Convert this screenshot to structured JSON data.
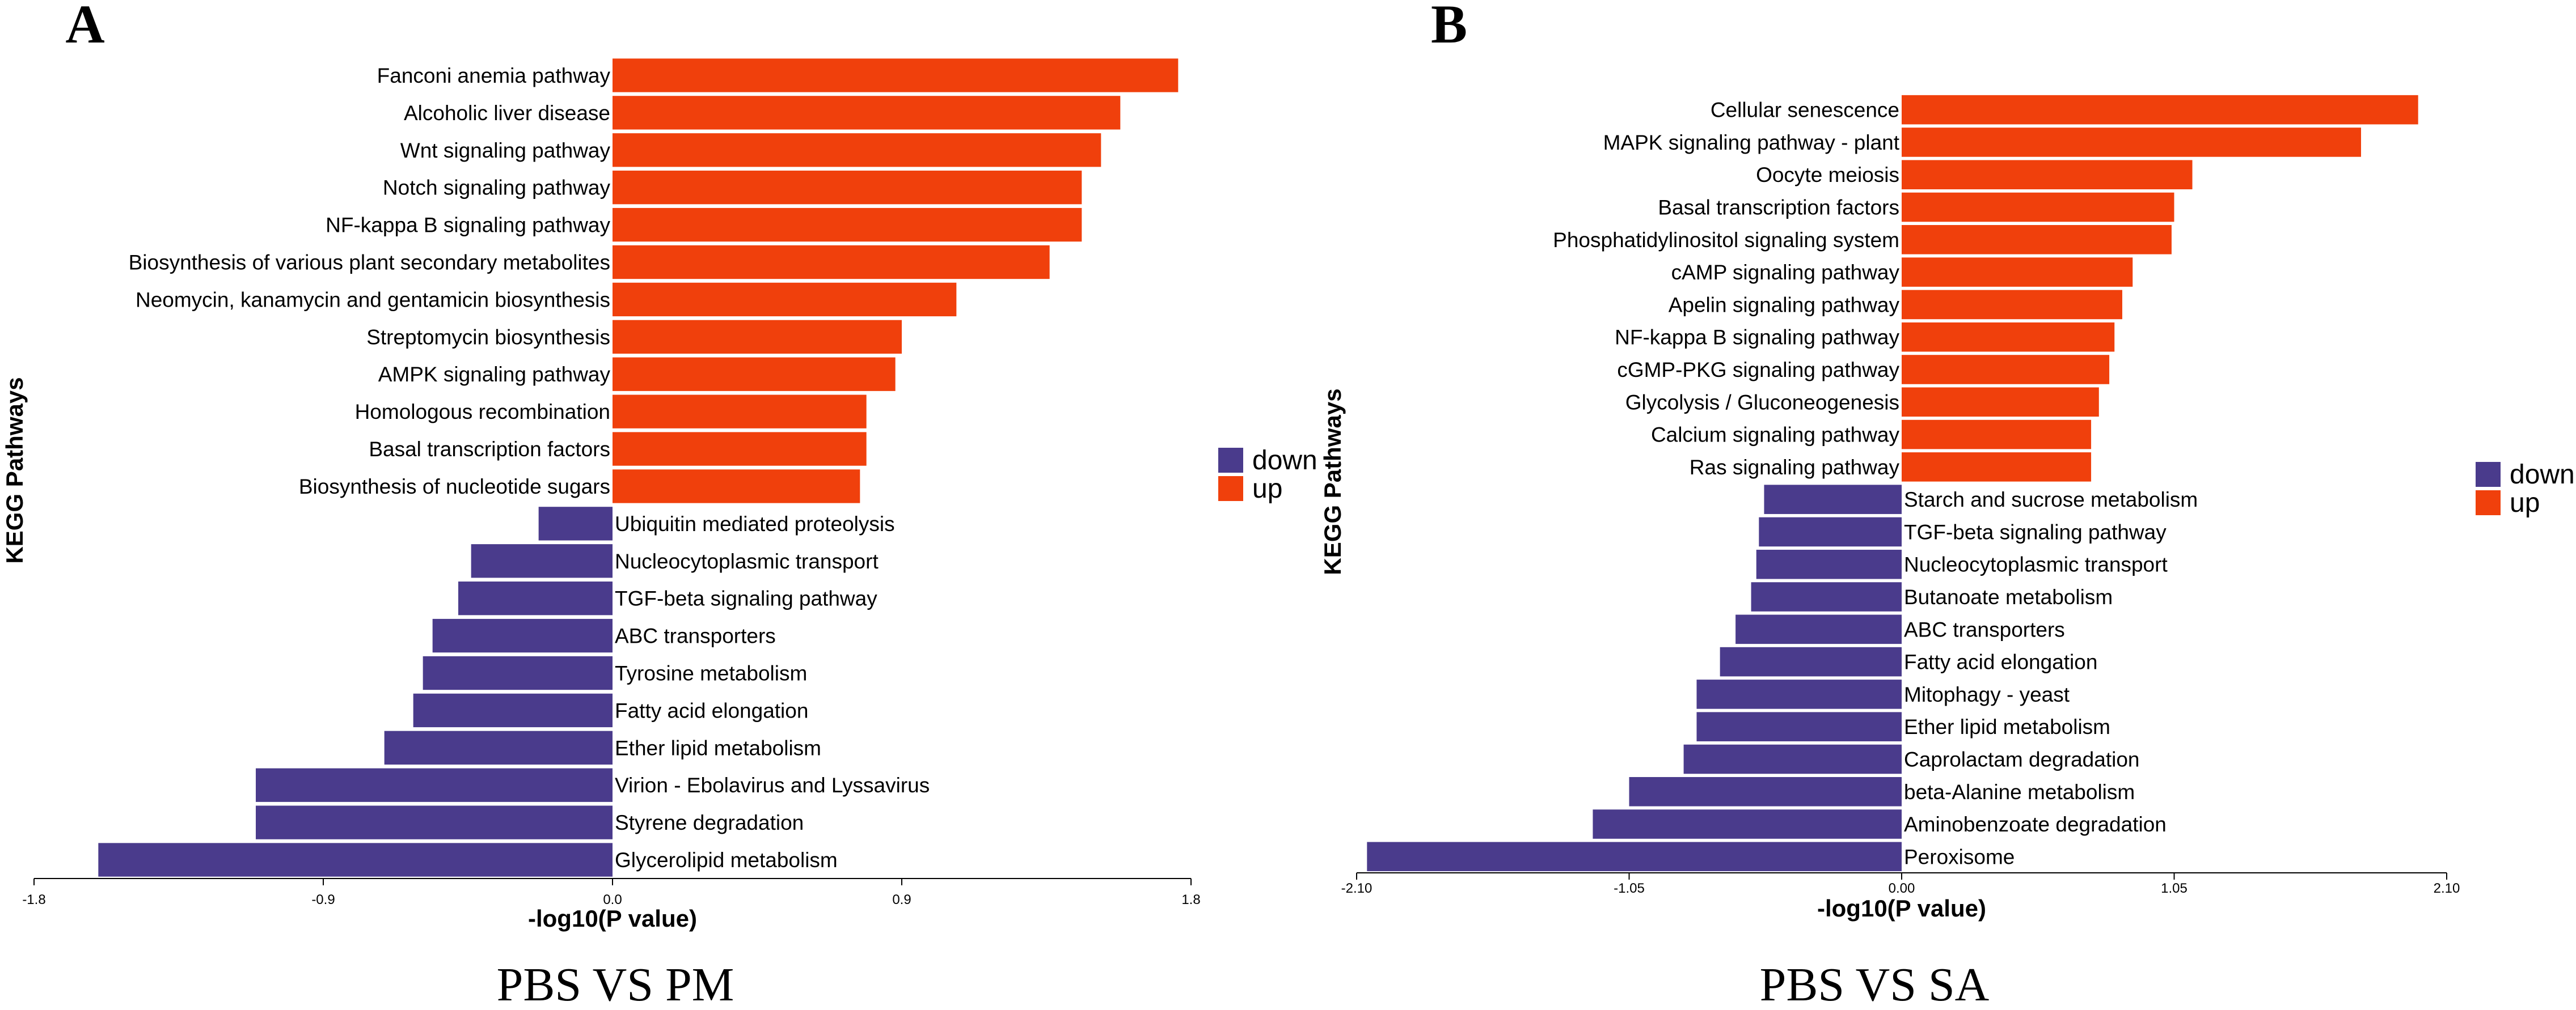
{
  "colors": {
    "up": "#F0400C",
    "down": "#4A3B8C"
  },
  "chart_data": [
    {
      "type": "bar",
      "orientation": "horizontal",
      "panel": "A",
      "caption": "PBS VS PM",
      "xlabel": "-log10(P value)",
      "ylabel": "KEGG Pathways",
      "xlim": [
        -1.8,
        1.8
      ],
      "xticks": [
        "-1.8",
        "-0.9",
        "0.0",
        "0.9",
        "1.8"
      ],
      "xtick_values": [
        -1.8,
        -0.9,
        0,
        0.9,
        1.8
      ],
      "legend": [
        "down",
        "up"
      ],
      "legend_position": "right",
      "categories": [
        "Fanconi anemia pathway",
        "Alcoholic liver disease",
        "Wnt signaling pathway",
        "Notch signaling pathway",
        "NF-kappa B signaling pathway",
        "Biosynthesis of various plant secondary metabolites",
        "Neomycin, kanamycin and gentamicin biosynthesis",
        "Streptomycin biosynthesis",
        "AMPK signaling pathway",
        "Homologous recombination",
        "Basal transcription factors",
        "Biosynthesis of nucleotide sugars",
        "Ubiquitin mediated proteolysis",
        "Nucleocytoplasmic transport",
        "TGF-beta signaling pathway",
        "ABC transporters",
        "Tyrosine metabolism",
        "Fatty acid elongation",
        "Ether lipid metabolism",
        "Virion - Ebolavirus and Lyssavirus",
        "Styrene degradation",
        "Glycerolipid metabolism"
      ],
      "values": [
        1.76,
        1.58,
        1.52,
        1.46,
        1.46,
        1.36,
        1.07,
        0.9,
        0.88,
        0.79,
        0.79,
        0.77,
        -0.23,
        -0.44,
        -0.48,
        -0.56,
        -0.59,
        -0.62,
        -0.71,
        -1.11,
        -1.11,
        -1.6
      ],
      "groups": [
        "up",
        "up",
        "up",
        "up",
        "up",
        "up",
        "up",
        "up",
        "up",
        "up",
        "up",
        "up",
        "down",
        "down",
        "down",
        "down",
        "down",
        "down",
        "down",
        "down",
        "down",
        "down"
      ]
    },
    {
      "type": "bar",
      "orientation": "horizontal",
      "panel": "B",
      "caption": "PBS VS SA",
      "xlabel": "-log10(P value)",
      "ylabel": "KEGG Pathways",
      "xlim": [
        -2.1,
        2.1
      ],
      "xticks": [
        "-2.10",
        "-1.05",
        "0.00",
        "1.05",
        "2.10"
      ],
      "xtick_values": [
        -2.1,
        -1.05,
        0,
        1.05,
        2.1
      ],
      "legend": [
        "down",
        "up"
      ],
      "legend_position": "right",
      "categories": [
        "Cellular senescence",
        "MAPK signaling pathway - plant",
        "Oocyte meiosis",
        "Basal transcription factors",
        "Phosphatidylinositol signaling system",
        "cAMP signaling pathway",
        "Apelin signaling pathway",
        "NF-kappa B signaling pathway",
        "cGMP-PKG signaling pathway",
        "Glycolysis / Gluconeogenesis",
        "Calcium signaling pathway",
        "Ras signaling pathway",
        "Starch and sucrose metabolism",
        "TGF-beta signaling pathway",
        "Nucleocytoplasmic transport",
        "Butanoate metabolism",
        "ABC transporters",
        "Fatty acid elongation",
        "Mitophagy - yeast",
        "Ether lipid metabolism",
        "Caprolactam degradation",
        "beta-Alanine metabolism",
        "Aminobenzoate degradation",
        "Peroxisome"
      ],
      "values": [
        1.99,
        1.77,
        1.12,
        1.05,
        1.04,
        0.89,
        0.85,
        0.82,
        0.8,
        0.76,
        0.73,
        0.73,
        -0.53,
        -0.55,
        -0.56,
        -0.58,
        -0.64,
        -0.7,
        -0.79,
        -0.79,
        -0.84,
        -1.05,
        -1.19,
        -2.06
      ],
      "groups": [
        "up",
        "up",
        "up",
        "up",
        "up",
        "up",
        "up",
        "up",
        "up",
        "up",
        "up",
        "up",
        "down",
        "down",
        "down",
        "down",
        "down",
        "down",
        "down",
        "down",
        "down",
        "down",
        "down",
        "down"
      ]
    }
  ]
}
